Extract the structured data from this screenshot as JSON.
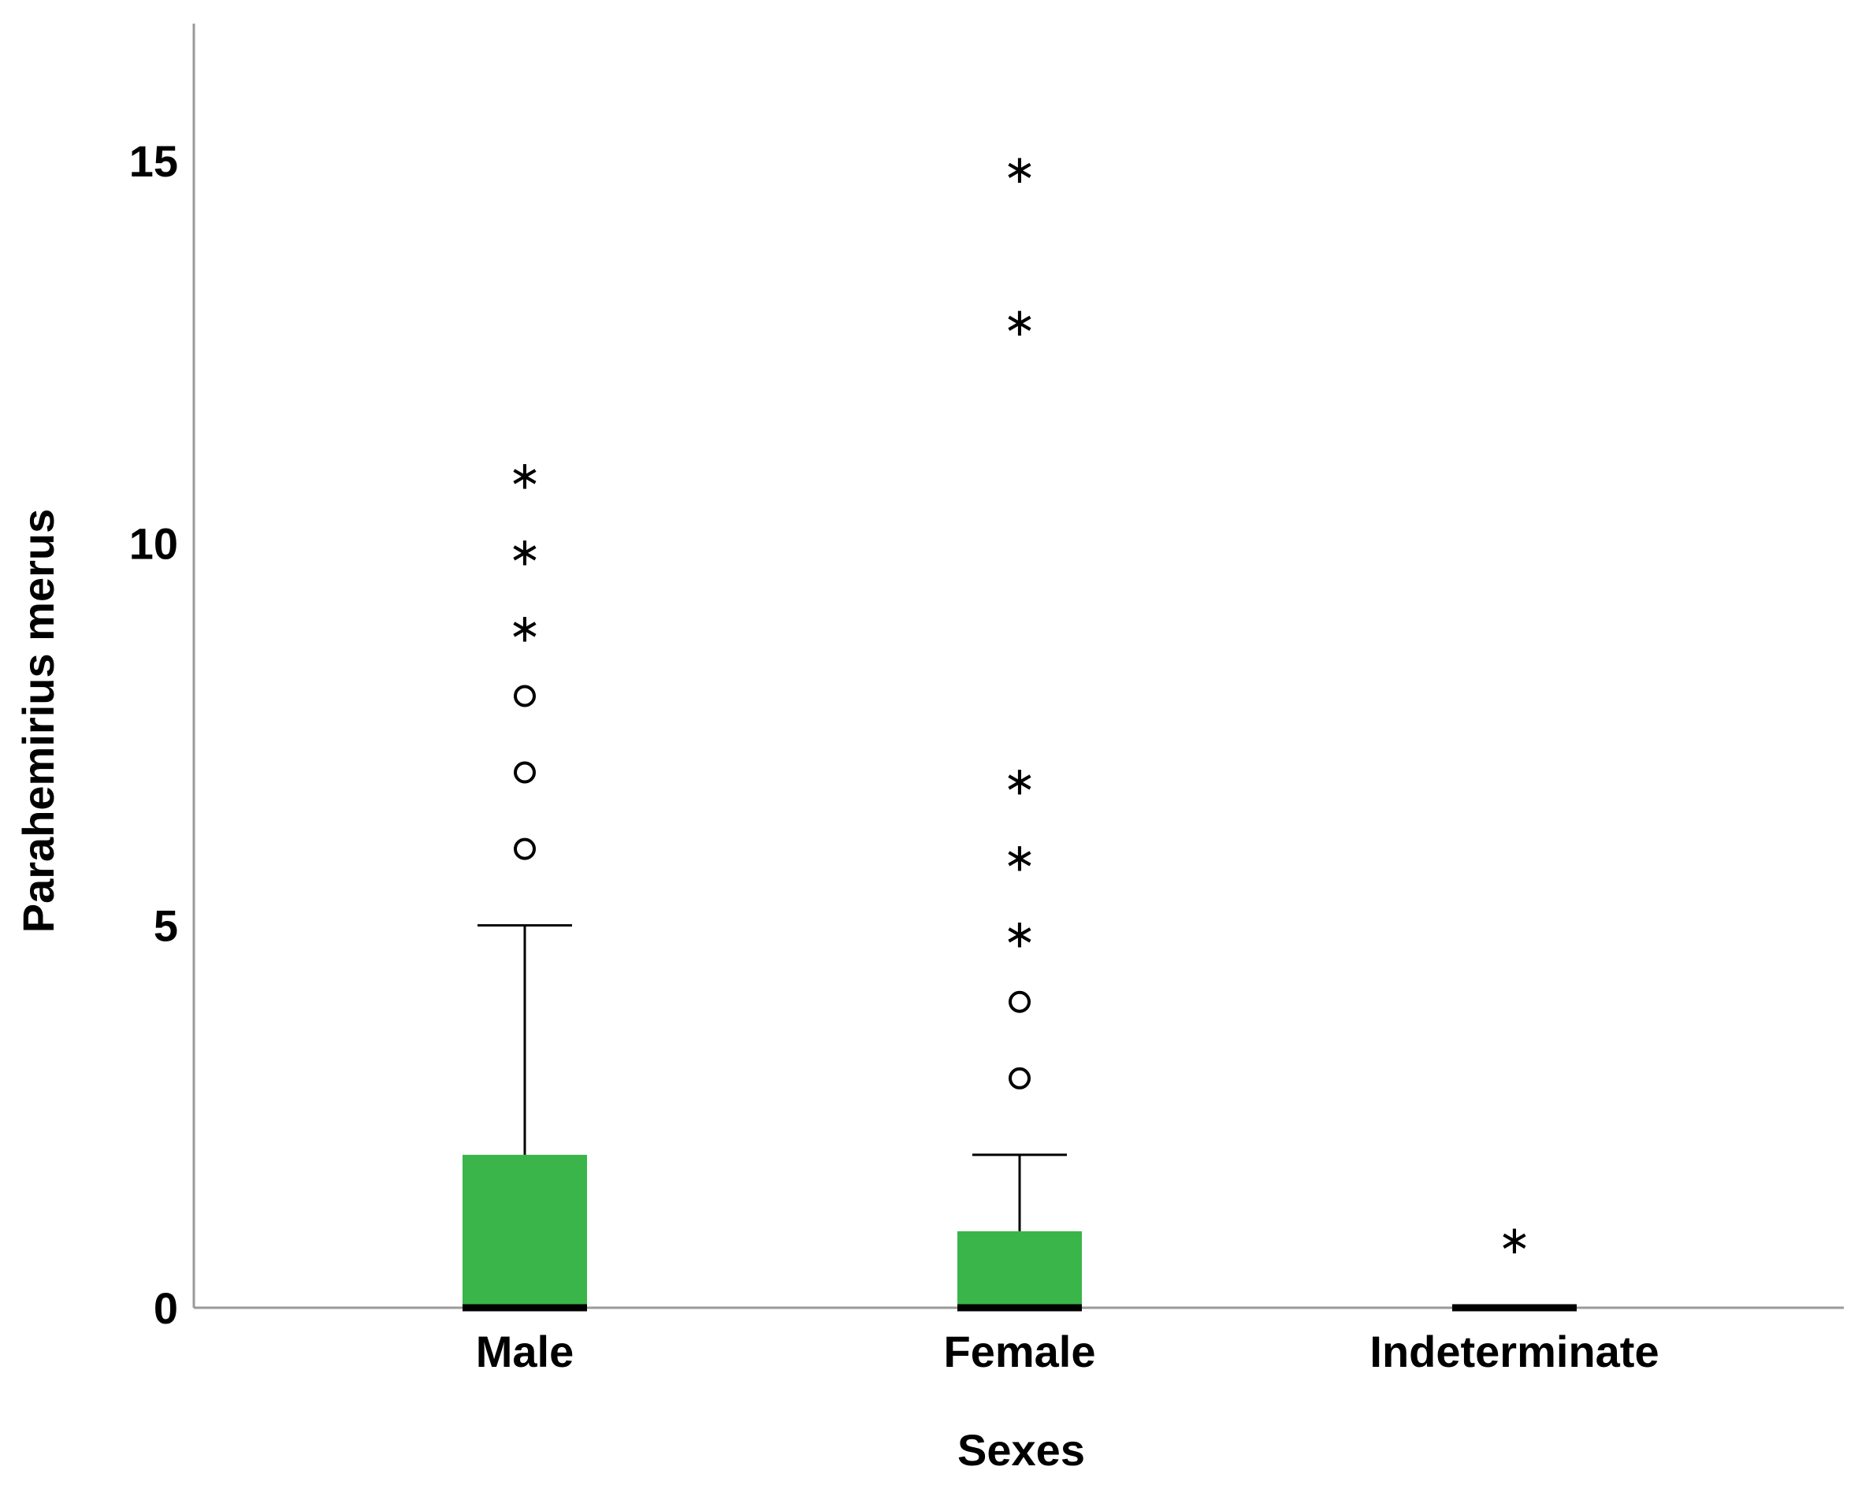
{
  "chart_data": {
    "type": "boxplot",
    "title": "",
    "xlabel": "Sexes",
    "ylabel": "Parahemirius merus",
    "ylim": [
      0,
      17
    ],
    "yticks": [
      0,
      5,
      10,
      15
    ],
    "grid": false,
    "categories": [
      "Male",
      "Female",
      "Indeterminate"
    ],
    "box_color": "#3ab54a",
    "boxes": [
      {
        "category": "Male",
        "min": 0,
        "q1": 0,
        "median": 0,
        "q3": 2,
        "max": 5,
        "outliers_circle": [
          6,
          7,
          8
        ],
        "outliers_star": [
          9,
          10,
          11
        ]
      },
      {
        "category": "Female",
        "min": 0,
        "q1": 0,
        "median": 0,
        "q3": 1,
        "max": 2,
        "outliers_circle": [
          3,
          4
        ],
        "outliers_star": [
          5,
          6,
          7,
          13,
          15
        ]
      },
      {
        "category": "Indeterminate",
        "min": 0,
        "q1": 0,
        "median": 0,
        "q3": 0,
        "max": 0,
        "outliers_circle": [],
        "outliers_star": [
          1
        ]
      }
    ]
  }
}
